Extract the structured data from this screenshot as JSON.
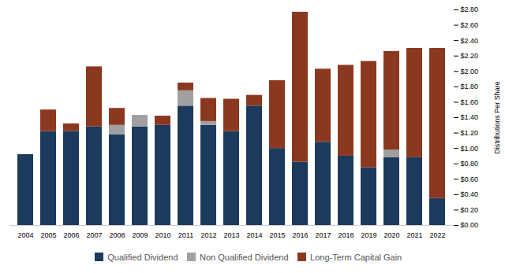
{
  "chart_data": {
    "type": "bar",
    "stacked": true,
    "grid": false,
    "legend": "bottom",
    "categories": [
      "2004",
      "2005",
      "2006",
      "2007",
      "2008",
      "2009",
      "2010",
      "2011",
      "2012",
      "2013",
      "2014",
      "2015",
      "2016",
      "2017",
      "2018",
      "2019",
      "2020",
      "2021",
      "2022"
    ],
    "series": [
      {
        "name": "Qualified Dividend",
        "color": "#1b3a5c",
        "values": [
          0.92,
          1.22,
          1.22,
          1.28,
          1.18,
          1.28,
          1.3,
          1.55,
          1.3,
          1.22,
          1.55,
          1.0,
          0.82,
          1.08,
          0.9,
          0.75,
          0.88,
          0.88,
          0.35
        ]
      },
      {
        "name": "Non Qualified Dividend",
        "color": "#a0a0a0",
        "values": [
          0.0,
          0.0,
          0.0,
          0.0,
          0.12,
          0.15,
          0.0,
          0.2,
          0.05,
          0.0,
          0.0,
          0.0,
          0.0,
          0.0,
          0.0,
          0.0,
          0.1,
          0.0,
          0.0
        ]
      },
      {
        "name": "Long-Term Capital Gain",
        "color": "#8b3820",
        "values": [
          0.0,
          0.28,
          0.1,
          0.78,
          0.22,
          0.0,
          0.12,
          0.1,
          0.3,
          0.42,
          0.14,
          0.88,
          1.95,
          0.95,
          1.18,
          1.38,
          1.28,
          1.42,
          1.95
        ]
      }
    ],
    "ylabel": "Distributions Per Share",
    "ylim": [
      0,
      2.8
    ],
    "yticks": [
      {
        "value": 0,
        "label": "$0.00"
      },
      {
        "value": 0.2,
        "label": "$0.20"
      },
      {
        "value": 0.4,
        "label": "$0.40"
      },
      {
        "value": 0.6,
        "label": "$0.60"
      },
      {
        "value": 0.8,
        "label": "$0.80"
      },
      {
        "value": 1.0,
        "label": "$1.00"
      },
      {
        "value": 1.2,
        "label": "$1.20"
      },
      {
        "value": 1.4,
        "label": "$1.40"
      },
      {
        "value": 1.6,
        "label": "$1.60"
      },
      {
        "value": 1.8,
        "label": "$1.80"
      },
      {
        "value": 2.0,
        "label": "$2.00"
      },
      {
        "value": 2.2,
        "label": "$2.20"
      },
      {
        "value": 2.4,
        "label": "$2.40"
      },
      {
        "value": 2.6,
        "label": "$2.60"
      },
      {
        "value": 2.8,
        "label": "$2.80"
      }
    ]
  }
}
